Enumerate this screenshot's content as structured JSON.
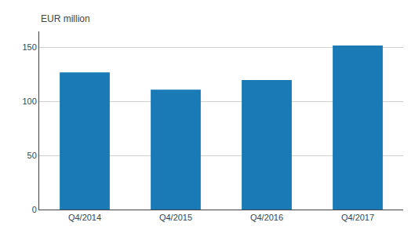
{
  "chart_data": {
    "type": "bar",
    "ylabel": "EUR million",
    "categories": [
      "Q4/2014",
      "Q4/2015",
      "Q4/2016",
      "Q4/2017"
    ],
    "values": [
      127,
      111,
      120,
      152
    ],
    "color": "#1a7ab5",
    "ylim": [
      0,
      165
    ],
    "yticks": [
      0,
      50,
      100,
      150
    ],
    "grid": true
  }
}
